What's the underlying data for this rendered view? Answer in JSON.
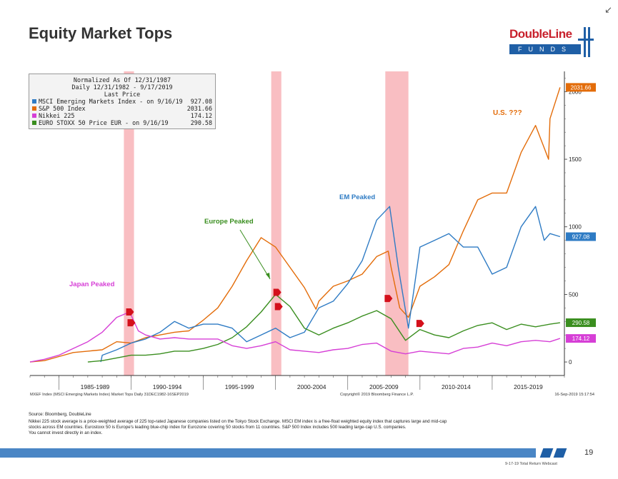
{
  "page": {
    "title": "Equity Market Tops",
    "logo_top": "DoubleLine",
    "logo_bottom": "FUNDS",
    "source": "Source: Bloomberg, DoubleLine",
    "notes": [
      "Nikkei 225 stock average is a price-weighted average of 225 top-rated Japanese companies listed on the Tokyo Stock Exchange. MSCI EM index is a free-float weighted equity index that captures large and mid-cap",
      "stocks across EM countries. Eurostoxx 50 is Europe's leading blue-chip index for Eurozone covering 50 stocks from 11 countries. S&P 500 Index includes 500 leading large-cap U.S. companies.",
      "You cannot invest directly in an index."
    ],
    "page_number": "19",
    "footer_caption": "9-17-19 Total Return Webcast",
    "colors": {
      "brand_red": "#c8202c",
      "brand_blue": "#1f5fa6",
      "band": "#f7a8ad"
    }
  },
  "chart_data": {
    "type": "line",
    "legend": {
      "line1": "Normalized As Of 12/31/1987",
      "line2": "Daily 12/31/1982 - 9/17/2019",
      "line3": "Last Price",
      "entries": [
        {
          "name": "MSCI Emerging Markets Index - on 9/16/19",
          "value": "927.08",
          "color": "#2e7bc4"
        },
        {
          "name": "S&P 500 Index",
          "value": "2031.66",
          "color": "#e36c09"
        },
        {
          "name": "Nikkei 225",
          "value": "174.12",
          "color": "#d63fd6"
        },
        {
          "name": "EURO STOXX 50 Price EUR - on 9/16/19",
          "value": "290.58",
          "color": "#3a8e1f"
        }
      ]
    },
    "ylim": [
      -100,
      2150
    ],
    "y_ticks": [
      0,
      500,
      1000,
      1500,
      2000
    ],
    "y_tick_labels": [
      "0",
      "500",
      "1000",
      "1500",
      "2000"
    ],
    "x_range": [
      1983,
      2020
    ],
    "x_labels": [
      "1985-1989",
      "1990-1994",
      "1995-1999",
      "2000-2004",
      "2005-2009",
      "2010-2014",
      "2015-2019"
    ],
    "x_label_positions": [
      1987.5,
      1992.5,
      1997.5,
      2002.5,
      2007.5,
      2012.5,
      2017.5
    ],
    "x_separators": [
      1985,
      1990,
      1995,
      2000,
      2005,
      2010,
      2015
    ],
    "footer_left": "MXEF Index (MSCI Emerging Markets Index) Market Tops  Daily 31DEC1982-16SEP2019",
    "footer_mid": "Copyright© 2019 Bloomberg Finance L.P.",
    "footer_right": "16-Sep-2019 15:17:54",
    "shaded_periods": [
      [
        1989.5,
        1990.2
      ],
      [
        1999.7,
        2000.4
      ],
      [
        2007.6,
        2009.2
      ]
    ],
    "annotations": {
      "japan": "Japan Peaked",
      "europe": "Europe Peaked",
      "em": "EM Peaked",
      "us": "U.S. ???"
    },
    "last_price_tags": [
      {
        "value": "2031.66",
        "y": 2031.66,
        "color": "#e36c09"
      },
      {
        "value": "927.08",
        "y": 927.08,
        "color": "#2e7bc4"
      },
      {
        "value": "290.58",
        "y": 290.58,
        "color": "#3a8e1f"
      },
      {
        "value": "174.12",
        "y": 174.12,
        "color": "#d63fd6"
      }
    ],
    "markers": [
      {
        "x": 1989.9,
        "y": 370
      },
      {
        "x": 1990.0,
        "y": 290
      },
      {
        "x": 2000.1,
        "y": 515
      },
      {
        "x": 2000.2,
        "y": 410
      },
      {
        "x": 2007.8,
        "y": 470
      },
      {
        "x": 2010.0,
        "y": 285
      }
    ],
    "series": [
      {
        "name": "S&P 500 Index",
        "color": "#e36c09",
        "x": [
          1983,
          1984,
          1985,
          1986,
          1987,
          1988,
          1989,
          1990,
          1991,
          1992,
          1993,
          1994,
          1995,
          1996,
          1997,
          1998,
          1999,
          2000,
          2001,
          2002,
          2002.8,
          2003,
          2004,
          2005,
          2006,
          2007,
          2007.8,
          2008,
          2008.6,
          2009.2,
          2010,
          2011,
          2012,
          2013,
          2014,
          2015,
          2016,
          2017,
          2018,
          2018.9,
          2019,
          2019.7
        ],
        "values": [
          0,
          10,
          40,
          70,
          80,
          90,
          150,
          140,
          180,
          200,
          220,
          230,
          310,
          400,
          560,
          750,
          920,
          850,
          700,
          550,
          390,
          450,
          560,
          600,
          650,
          780,
          820,
          700,
          400,
          330,
          560,
          630,
          720,
          970,
          1200,
          1250,
          1250,
          1550,
          1750,
          1500,
          1800,
          2031.66
        ]
      },
      {
        "name": "MSCI Emerging Markets Index",
        "color": "#2e7bc4",
        "x": [
          1987.9,
          1988,
          1989,
          1990,
          1991,
          1992,
          1993,
          1994,
          1995,
          1996,
          1997,
          1998,
          1999,
          2000,
          2001,
          2002,
          2003,
          2004,
          2005,
          2006,
          2007,
          2007.9,
          2008.5,
          2009.2,
          2010,
          2011,
          2012,
          2013,
          2014,
          2015,
          2016,
          2017,
          2018,
          2018.6,
          2019,
          2019.7
        ],
        "values": [
          0,
          50,
          90,
          140,
          170,
          220,
          300,
          250,
          280,
          280,
          250,
          150,
          200,
          250,
          180,
          220,
          400,
          450,
          580,
          750,
          1050,
          1150,
          700,
          250,
          850,
          900,
          950,
          850,
          850,
          650,
          700,
          1000,
          1150,
          900,
          950,
          927.08
        ]
      },
      {
        "name": "EURO STOXX 50 Price EUR",
        "color": "#3a8e1f",
        "x": [
          1987,
          1988,
          1989,
          1990,
          1991,
          1992,
          1993,
          1994,
          1995,
          1996,
          1997,
          1998,
          1999,
          2000,
          2001,
          2002,
          2003,
          2004,
          2005,
          2006,
          2007,
          2008,
          2009,
          2010,
          2011,
          2012,
          2013,
          2014,
          2015,
          2016,
          2017,
          2018,
          2019,
          2019.7
        ],
        "values": [
          0,
          10,
          30,
          50,
          50,
          60,
          80,
          80,
          100,
          130,
          180,
          260,
          370,
          500,
          410,
          250,
          200,
          250,
          290,
          340,
          380,
          320,
          160,
          240,
          200,
          180,
          230,
          270,
          290,
          240,
          280,
          260,
          280,
          290.58
        ]
      },
      {
        "name": "Nikkei 225",
        "color": "#d63fd6",
        "x": [
          1983,
          1984,
          1985,
          1986,
          1987,
          1988,
          1989,
          1989.9,
          1990.5,
          1991,
          1992,
          1993,
          1994,
          1995,
          1996,
          1997,
          1998,
          1999,
          2000,
          2001,
          2002,
          2003,
          2004,
          2005,
          2006,
          2007,
          2008,
          2009,
          2010,
          2011,
          2012,
          2013,
          2014,
          2015,
          2016,
          2017,
          2018,
          2019,
          2019.7
        ],
        "values": [
          0,
          20,
          50,
          100,
          150,
          220,
          330,
          370,
          230,
          200,
          170,
          180,
          170,
          170,
          170,
          120,
          100,
          120,
          150,
          90,
          80,
          70,
          90,
          100,
          130,
          140,
          80,
          60,
          80,
          70,
          60,
          100,
          110,
          140,
          120,
          150,
          160,
          150,
          174.12
        ]
      }
    ]
  }
}
